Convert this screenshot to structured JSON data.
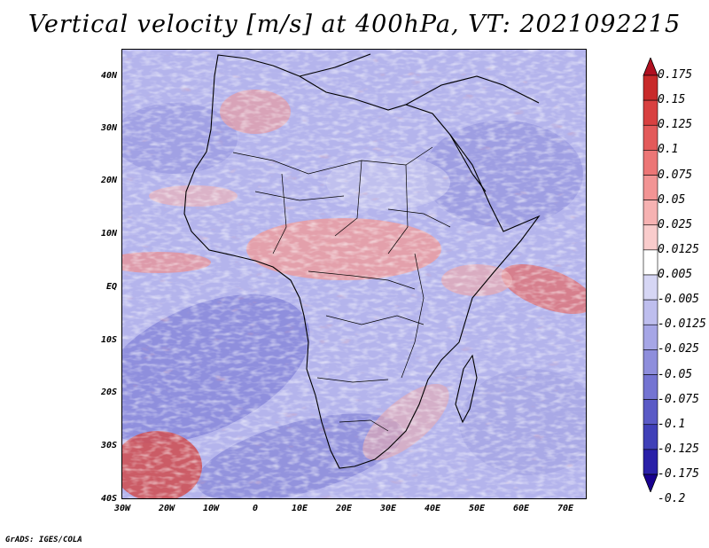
{
  "title": "Vertical velocity [m/s] at 400hPa, VT: 2021092215",
  "credit": "GrADS: IGES/COLA",
  "map": {
    "variable": "Vertical velocity",
    "units": "m/s",
    "level": "400hPa",
    "valid_time": "2021092215",
    "lon_range": [
      -30,
      75
    ],
    "lat_range": [
      -40,
      45
    ],
    "lat_ticks": [
      "40N",
      "30N",
      "20N",
      "10N",
      "EQ",
      "10S",
      "20S",
      "30S",
      "40S"
    ],
    "lon_ticks": [
      "30W",
      "20W",
      "10W",
      "0",
      "10E",
      "20E",
      "30E",
      "40E",
      "50E",
      "60E",
      "70E"
    ]
  },
  "colorbar": {
    "labels": [
      "0.175",
      "0.15",
      "0.125",
      "0.1",
      "0.075",
      "0.05",
      "0.025",
      "0.0125",
      "0.005",
      "-0.005",
      "-0.0125",
      "-0.025",
      "-0.05",
      "-0.075",
      "-0.1",
      "-0.125",
      "-0.175",
      "-0.2"
    ],
    "colors": [
      "#b01020",
      "#c82a2a",
      "#d84040",
      "#e35a5a",
      "#ec7676",
      "#f29494",
      "#f6b2b2",
      "#f9cccc",
      "#ffffff",
      "#d6d6f4",
      "#bebeee",
      "#a6a6e6",
      "#8e8edc",
      "#7474d2",
      "#5a5ac6",
      "#4040b8",
      "#2a20a8",
      "#180090"
    ]
  }
}
